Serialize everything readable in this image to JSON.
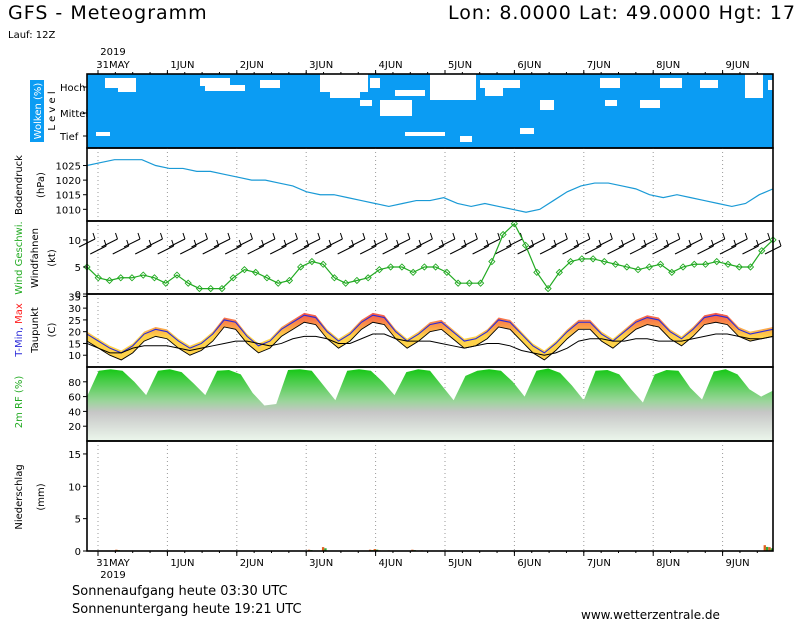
{
  "header": {
    "title": "GFS - Meteogramm",
    "coords": "Lon: 8.0000 Lat: 49.0000 Hgt: 17",
    "run": "Lauf: 12Z"
  },
  "footer": {
    "sunrise": "Sonnenaufgang heute 03:30 UTC",
    "sunset": "Sonnenuntergang heute 19:21 UTC",
    "website": "www.wetterzentrale.de"
  },
  "chart_data": [
    {
      "type": "line",
      "id": "axis",
      "year": "2019",
      "dates": [
        "31MAY",
        "1JUN",
        "2JUN",
        "3JUN",
        "4JUN",
        "5JUN",
        "6JUN",
        "7JUN",
        "8JUN",
        "9JUN"
      ],
      "start": "2019-05-30 12Z",
      "end": "2019-06-09 18Z",
      "step_hours": 6
    },
    {
      "type": "heatmap",
      "id": "clouds",
      "ylabel": "Wolken (%)",
      "ylabel2": "L e v e l",
      "levels": [
        "Hoch",
        "Mittel",
        "Tief"
      ],
      "colors": {
        "clear": "#ffffff",
        "cloud": "#0b9cf3"
      },
      "note": "blue = cloud cover, white patches = clear"
    },
    {
      "type": "line",
      "id": "pressure",
      "ylabel": "Bodendruck",
      "ylabel2": "(hPa)",
      "yticks": [
        1010,
        1015,
        1020,
        1025
      ],
      "ylim": [
        1006,
        1031
      ],
      "color": "#1a9ad6",
      "series": [
        {
          "values": [
            1025,
            1026,
            1027,
            1027,
            1027,
            1025,
            1024,
            1024,
            1023,
            1023,
            1022,
            1021,
            1020,
            1020,
            1019,
            1018,
            1016,
            1015,
            1015,
            1014,
            1013,
            1012,
            1011,
            1012,
            1013,
            1013,
            1014,
            1012,
            1011,
            1012,
            1011,
            1010,
            1009,
            1010,
            1013,
            1016,
            1018,
            1019,
            1019,
            1018,
            1017,
            1015,
            1014,
            1015,
            1014,
            1013,
            1012,
            1011,
            1012,
            1015,
            1017
          ]
        }
      ]
    },
    {
      "type": "line",
      "id": "wind",
      "ylabel": "Wind Geschwi.",
      "ylabel2": "Windfahnen",
      "ylabel3": "(kt)",
      "yticks": [
        0,
        5,
        10
      ],
      "ylim": [
        0,
        13.5
      ],
      "color": "#22aa22",
      "series": [
        {
          "values": [
            5,
            3,
            2.5,
            3,
            3,
            3.5,
            3,
            2,
            3.5,
            2,
            1,
            1,
            1,
            3,
            4.5,
            4,
            3,
            2,
            2.5,
            5,
            6,
            5.5,
            3,
            2,
            2.5,
            3,
            4.5,
            5,
            5,
            4,
            5,
            5,
            4,
            2,
            2,
            2,
            6,
            11,
            13,
            9,
            4,
            1,
            4,
            6,
            6.5,
            6.5,
            6,
            5.5,
            5,
            4.5,
            5,
            5.5,
            4,
            5,
            5.5,
            5.5,
            6,
            5.5,
            5,
            5,
            8,
            10
          ]
        }
      ]
    },
    {
      "type": "area",
      "id": "temperature",
      "ylabel": "T-Min, Max",
      "ylabel2": "Taupunkt",
      "ylabel3": "(C)",
      "yticks": [
        10,
        15,
        20,
        25,
        30,
        35
      ],
      "ylim": [
        5,
        36
      ],
      "colors": {
        "band_low": "#ffd24a",
        "band_high": "#f2214b",
        "temp_line": "#2b2bd9",
        "dewpoint": "#000000",
        "tmin": "#2b2bd9",
        "tmax": "#ff1a1a"
      },
      "series": [
        {
          "values": [
            20,
            17,
            14,
            12,
            15,
            20,
            22,
            21,
            17,
            14,
            16,
            20,
            26,
            25,
            19,
            15,
            17,
            22,
            25,
            28,
            27,
            21,
            17,
            20,
            25,
            28,
            27,
            21,
            17,
            20,
            24,
            25,
            21,
            17,
            18,
            21,
            26,
            25,
            20,
            15,
            12,
            16,
            21,
            25,
            25,
            20,
            17,
            21,
            25,
            27,
            26,
            21,
            18,
            22,
            27,
            28,
            27,
            22,
            20,
            21,
            22
          ]
        },
        {
          "values": [
            15,
            13,
            11,
            11,
            13,
            14,
            14,
            14,
            13,
            12,
            13,
            14,
            15,
            16,
            16,
            15,
            14,
            15,
            17,
            18,
            18,
            17,
            15,
            15,
            17,
            19,
            19,
            17,
            16,
            16,
            16,
            15,
            14,
            13,
            14,
            15,
            15,
            14,
            12,
            11,
            10,
            11,
            13,
            16,
            17,
            17,
            16,
            16,
            17,
            17,
            16,
            16,
            16,
            17,
            18,
            19,
            19,
            18,
            17,
            17,
            18
          ]
        }
      ]
    },
    {
      "type": "area",
      "id": "humidity",
      "ylabel": "2m RF (%)",
      "yticks": [
        20,
        40,
        60,
        80
      ],
      "ylim": [
        0,
        100
      ],
      "colors": {
        "top": "#14c814",
        "bottom": "#ecf7ec"
      },
      "series": [
        {
          "values": [
            60,
            95,
            97,
            95,
            80,
            62,
            95,
            97,
            93,
            78,
            62,
            95,
            96,
            90,
            65,
            48,
            50,
            96,
            97,
            95,
            75,
            55,
            95,
            97,
            95,
            80,
            62,
            93,
            97,
            95,
            75,
            55,
            88,
            95,
            97,
            95,
            80,
            60,
            95,
            98,
            92,
            75,
            55,
            95,
            96,
            90,
            70,
            52,
            90,
            96,
            95,
            72,
            56,
            94,
            97,
            90,
            70,
            60,
            68
          ]
        }
      ]
    },
    {
      "type": "bar",
      "id": "precip",
      "ylabel": "Niederschlag",
      "ylabel2": "(mm)",
      "yticks": [
        0,
        5,
        10,
        15
      ],
      "ylim": [
        0,
        17
      ],
      "colors": {
        "convective": "#e0601f",
        "large_scale": "#32a832"
      },
      "series": [
        {
          "values": [
            0,
            0,
            0,
            0,
            0,
            0,
            0.2,
            0,
            0,
            0,
            0,
            0,
            0,
            0,
            0,
            0,
            0,
            0,
            0,
            0,
            0,
            0,
            0,
            0,
            0,
            0,
            0,
            0,
            0,
            0,
            0,
            0,
            0,
            0,
            0,
            0,
            0,
            0,
            0,
            0,
            0,
            0,
            0,
            0,
            0,
            0,
            0,
            0.2,
            0,
            0,
            0.6,
            0,
            0,
            0,
            0,
            0,
            0,
            0,
            0,
            0,
            0.2,
            0.3,
            0.1,
            0,
            0.1,
            0,
            0,
            0,
            0,
            0.2,
            0,
            0.1,
            0,
            0,
            0,
            0,
            0,
            0,
            0,
            0,
            0,
            0,
            0,
            0,
            0,
            0,
            0,
            0,
            0,
            0,
            0,
            0,
            0,
            0,
            0,
            0,
            0,
            0,
            0,
            0,
            0,
            0,
            0,
            0,
            0,
            0,
            0,
            0,
            0,
            0,
            0,
            0,
            0,
            0,
            0,
            0,
            0,
            0,
            0,
            0,
            0,
            0,
            0,
            0,
            0,
            0,
            0,
            0,
            0,
            0,
            0,
            0,
            0,
            0,
            0,
            0,
            0,
            0,
            0,
            0,
            0,
            0,
            0,
            0,
            0.9,
            0.6
          ]
        }
      ]
    }
  ]
}
